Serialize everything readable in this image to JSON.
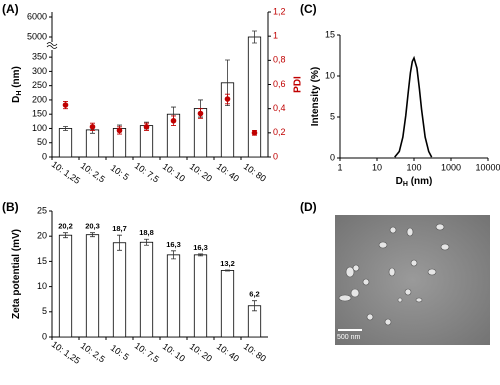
{
  "chart_data": [
    {
      "type": "bar",
      "panel_label": "(A)",
      "y_label": [
        "D",
        "H",
        " (nm)"
      ],
      "y2_label": "PDI",
      "axis_break": true,
      "categories": [
        "10: 1,25",
        "10: 2,5",
        "10: 5",
        "10: 7,5",
        "10: 10",
        "10: 20",
        "10: 40",
        "10: 80"
      ],
      "series": [
        {
          "type": "bar",
          "color": "#ffffff",
          "values": [
            100,
            95,
            100,
            110,
            150,
            170,
            260,
            5000
          ],
          "errors": [
            7,
            12,
            12,
            12,
            25,
            30,
            80,
            300
          ]
        },
        {
          "type": "scatter",
          "axis": "y2",
          "color": "#c00000",
          "values": [
            0.43,
            0.25,
            0.22,
            0.25,
            0.3,
            0.36,
            0.48,
            0.2
          ],
          "errors": [
            0.03,
            0.03,
            0.03,
            0.03,
            0.04,
            0.04,
            0.04,
            0.02
          ]
        }
      ],
      "ylim": [
        0,
        375
      ],
      "yticks": [
        0,
        50,
        100,
        150,
        200,
        250,
        300,
        350
      ],
      "ylim_upper": [
        4750,
        6250
      ],
      "yticks_upper": [
        5000,
        6000
      ],
      "y2lim": [
        0,
        1.2
      ],
      "y2ticks": [
        0,
        {
          "value": 0.2,
          "label": "0,2"
        },
        {
          "value": 0.4,
          "label": "0,4"
        },
        {
          "value": 0.6,
          "label": "0,6"
        },
        {
          "value": 0.8,
          "label": "0,8"
        },
        1,
        {
          "value": 1.2,
          "label": "1,2"
        }
      ]
    },
    {
      "type": "bar",
      "panel_label": "(B)",
      "y_label": [
        "Zeta potential (mV)"
      ],
      "categories": [
        "10: 1,25",
        "10: 2,5",
        "10: 5",
        "10: 7,5",
        "10: 10",
        "10: 20",
        "10: 40",
        "10: 80"
      ],
      "series": [
        {
          "type": "bar",
          "color": "#ffffff",
          "values": [
            20.2,
            20.3,
            18.7,
            18.8,
            16.3,
            16.3,
            13.2,
            6.2
          ],
          "errors": [
            0.5,
            0.4,
            1.5,
            0.6,
            0.8,
            0.2,
            0.1,
            1.0
          ],
          "value_labels": [
            "20,2",
            "20,3",
            "18,7",
            "18,8",
            "16,3",
            "16,3",
            "13,2",
            "6,2"
          ]
        }
      ],
      "ylim": [
        0,
        25
      ],
      "yticks": [
        0,
        5,
        10,
        15,
        20,
        25
      ]
    },
    {
      "type": "line",
      "panel_label": "(C)",
      "y_label": [
        "Intensity (%)"
      ],
      "x_label": [
        "D",
        "H",
        " (nm)"
      ],
      "xscale": "log",
      "x": [
        30,
        40,
        50,
        60,
        70,
        80,
        90,
        100,
        120,
        140,
        160,
        200,
        250,
        300
      ],
      "values": [
        0.11,
        0.79,
        2.55,
        5.2,
        8.06,
        10.4,
        11.77,
        12.2,
        10.95,
        8.43,
        5.94,
        2.55,
        0.79,
        0.11
      ],
      "color": "#000000",
      "xlim": [
        1,
        10000
      ],
      "xticks": [
        1,
        10,
        100,
        1000,
        10000
      ],
      "ylim": [
        0,
        15
      ],
      "yticks": [
        0,
        5,
        10,
        15
      ]
    }
  ],
  "image": {
    "panel_label": "(D)",
    "scale_bar": "500 nm"
  }
}
